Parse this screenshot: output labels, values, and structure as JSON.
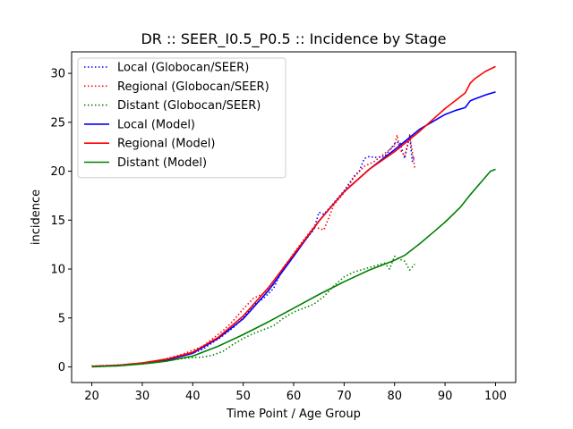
{
  "chart_data": {
    "type": "line",
    "title": "DR :: SEER_I0.5_P0.5 ::  Incidence by Stage",
    "xlabel": "Time Point / Age Group",
    "ylabel": "incidence",
    "xlim": [
      16,
      104
    ],
    "ylim": [
      -1.6,
      32.2
    ],
    "xticks": [
      20,
      30,
      40,
      50,
      60,
      70,
      80,
      90,
      100
    ],
    "yticks": [
      0,
      5,
      10,
      15,
      20,
      25,
      30
    ],
    "grid": false,
    "legend_position": "upper-left",
    "series": [
      {
        "name": "Local (Globocan/SEER)",
        "color": "#0000ff",
        "style": "dotted",
        "x": [
          20,
          22,
          24,
          26,
          28,
          30,
          32,
          34,
          36,
          38,
          40,
          42,
          44,
          46,
          48,
          50,
          52,
          54,
          56,
          58,
          60,
          62,
          64,
          65,
          66,
          68,
          70,
          72,
          73,
          74,
          75,
          76,
          78,
          80,
          81,
          82,
          83,
          83.5,
          84
        ],
        "y": [
          0.1,
          0.12,
          0.15,
          0.2,
          0.3,
          0.4,
          0.5,
          0.65,
          0.85,
          1.1,
          1.4,
          1.8,
          2.5,
          3.2,
          4.0,
          5.0,
          6.3,
          7.0,
          8.0,
          10.2,
          11.5,
          12.8,
          14.0,
          15.8,
          15.6,
          16.8,
          18.0,
          19.5,
          20.0,
          21.3,
          21.5,
          21.4,
          21.5,
          22.8,
          23.0,
          21.3,
          23.6,
          21.0,
          21.6
        ]
      },
      {
        "name": "Regional (Globocan/SEER)",
        "color": "#ff0000",
        "style": "dotted",
        "x": [
          20,
          22,
          24,
          26,
          28,
          30,
          32,
          34,
          36,
          38,
          40,
          42,
          44,
          46,
          48,
          50,
          52,
          54,
          56,
          58,
          60,
          62,
          64,
          66,
          68,
          70,
          72,
          74,
          76,
          78,
          80,
          80.5,
          81,
          82,
          83,
          83.5,
          84
        ],
        "y": [
          0.05,
          0.1,
          0.15,
          0.2,
          0.3,
          0.4,
          0.55,
          0.75,
          1.0,
          1.3,
          1.7,
          2.1,
          2.9,
          3.7,
          4.7,
          5.9,
          7.0,
          7.5,
          8.4,
          10.0,
          11.6,
          13.0,
          14.3,
          14.0,
          16.6,
          17.8,
          19.4,
          20.5,
          21.0,
          21.8,
          22.6,
          23.7,
          22.3,
          21.5,
          23.7,
          22.0,
          20.3
        ]
      },
      {
        "name": "Distant (Globocan/SEER)",
        "color": "#008000",
        "style": "dotted",
        "x": [
          20,
          22,
          24,
          26,
          28,
          30,
          32,
          34,
          36,
          38,
          40,
          42,
          44,
          46,
          48,
          50,
          52,
          54,
          56,
          58,
          60,
          62,
          64,
          66,
          68,
          70,
          72,
          74,
          76,
          78,
          79,
          80,
          81,
          82,
          83,
          84
        ],
        "y": [
          0.1,
          0.12,
          0.15,
          0.2,
          0.25,
          0.3,
          0.4,
          0.55,
          0.7,
          0.85,
          0.95,
          1.0,
          1.2,
          1.6,
          2.3,
          2.9,
          3.4,
          3.8,
          4.2,
          5.0,
          5.6,
          6.0,
          6.4,
          7.2,
          8.3,
          9.2,
          9.7,
          10.0,
          10.3,
          10.6,
          10.0,
          11.3,
          11.0,
          10.8,
          9.9,
          10.5
        ]
      },
      {
        "name": "Local (Model)",
        "color": "#0000ff",
        "style": "solid",
        "x": [
          20,
          25,
          30,
          35,
          40,
          45,
          50,
          55,
          60,
          65,
          70,
          75,
          80,
          85,
          90,
          92,
          94,
          95,
          96,
          98,
          100
        ],
        "y": [
          0.05,
          0.15,
          0.35,
          0.7,
          1.4,
          2.9,
          4.9,
          7.8,
          11.3,
          14.9,
          17.9,
          20.2,
          22.2,
          24.3,
          25.8,
          26.2,
          26.5,
          27.2,
          27.4,
          27.8,
          28.1
        ]
      },
      {
        "name": "Regional (Model)",
        "color": "#ff0000",
        "style": "solid",
        "x": [
          20,
          25,
          30,
          35,
          40,
          45,
          50,
          55,
          60,
          65,
          70,
          75,
          80,
          85,
          90,
          92,
          94,
          95,
          96,
          98,
          100
        ],
        "y": [
          0.05,
          0.15,
          0.4,
          0.8,
          1.5,
          3.0,
          5.2,
          8.1,
          11.5,
          14.9,
          17.9,
          20.2,
          22.0,
          24.1,
          26.4,
          27.2,
          28.0,
          29.0,
          29.5,
          30.2,
          30.7
        ]
      },
      {
        "name": "Distant (Model)",
        "color": "#008000",
        "style": "solid",
        "x": [
          20,
          25,
          30,
          35,
          40,
          45,
          50,
          55,
          60,
          65,
          70,
          75,
          80,
          82,
          85,
          88,
          90,
          93,
          95,
          98,
          99,
          100
        ],
        "y": [
          0.0,
          0.1,
          0.3,
          0.6,
          1.1,
          2.1,
          3.3,
          4.6,
          6.0,
          7.4,
          8.7,
          9.9,
          10.9,
          11.4,
          12.6,
          13.9,
          14.8,
          16.3,
          17.6,
          19.4,
          20.0,
          20.2
        ]
      }
    ]
  }
}
